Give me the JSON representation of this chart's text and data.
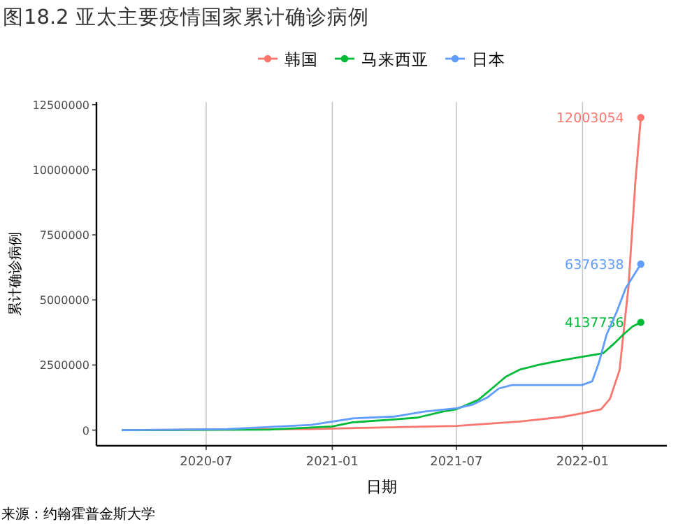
{
  "chart_data": {
    "type": "line",
    "title": "图18.2 亚太主要疫情国家累计确诊病例",
    "xlabel": "日期",
    "ylabel": "累计确诊病例",
    "annotations": [
      "来源：约翰霍普金斯大学"
    ],
    "legend": "top",
    "grid": "x",
    "line_style": "solid",
    "xlim": [
      "2020-01-23",
      "2022-05-04"
    ],
    "xticks": [
      {
        "value": "2020-07-01",
        "label": "2020-07"
      },
      {
        "value": "2021-01-01",
        "label": "2021-01"
      },
      {
        "value": "2021-07-01",
        "label": "2021-07"
      },
      {
        "value": "2022-01-01",
        "label": "2022-01"
      }
    ],
    "ylim": [
      -600000,
      12600000
    ],
    "yticks": [
      0,
      2500000,
      5000000,
      7500000,
      10000000,
      12500000
    ],
    "series": [
      {
        "name": "韩国",
        "color": "#f8766d",
        "x": [
          "2020-03-01",
          "2020-12-01",
          "2021-03-01",
          "2021-07-01",
          "2021-10-01",
          "2021-12-01",
          "2022-01-01",
          "2022-01-28",
          "2022-02-10",
          "2022-02-24",
          "2022-03-09",
          "2022-03-19",
          "2022-03-27"
        ],
        "values": [
          0,
          40000,
          95000,
          160000,
          330000,
          500000,
          650000,
          800000,
          1200000,
          2300000,
          5500000,
          9500000,
          12003054
        ],
        "value_labels": [
          null,
          null,
          null,
          null,
          null,
          null,
          null,
          null,
          null,
          null,
          null,
          null,
          "12003054"
        ]
      },
      {
        "name": "马来西亚",
        "color": "#00ba38",
        "x": [
          "2020-03-01",
          "2020-10-01",
          "2021-01-01",
          "2021-01-31",
          "2021-04-01",
          "2021-05-05",
          "2021-06-11",
          "2021-07-01",
          "2021-08-02",
          "2021-08-22",
          "2021-09-11",
          "2021-10-01",
          "2021-10-28",
          "2021-11-24",
          "2021-12-21",
          "2022-01-31",
          "2022-02-15",
          "2022-03-01",
          "2022-03-15",
          "2022-03-27"
        ],
        "values": [
          0,
          20000,
          140000,
          300000,
          410000,
          480000,
          710000,
          800000,
          1160000,
          1600000,
          2050000,
          2320000,
          2500000,
          2640000,
          2770000,
          2950000,
          3300000,
          3660000,
          3980000,
          4137736
        ],
        "value_labels": [
          null,
          null,
          null,
          null,
          null,
          null,
          null,
          null,
          null,
          null,
          null,
          null,
          null,
          null,
          null,
          null,
          null,
          null,
          null,
          "4137736"
        ]
      },
      {
        "name": "日本",
        "color": "#619cff",
        "x": [
          "2020-03-01",
          "2020-08-01",
          "2020-12-01",
          "2021-01-31",
          "2021-04-01",
          "2021-05-15",
          "2021-07-01",
          "2021-07-25",
          "2021-08-15",
          "2021-09-01",
          "2021-09-20",
          "2021-12-31",
          "2022-01-15",
          "2022-01-25",
          "2022-02-05",
          "2022-02-20",
          "2022-03-05",
          "2022-03-27"
        ],
        "values": [
          0,
          40000,
          200000,
          450000,
          520000,
          710000,
          840000,
          980000,
          1250000,
          1600000,
          1730000,
          1730000,
          1870000,
          2600000,
          3660000,
          4550000,
          5450000,
          6376338
        ],
        "value_labels": [
          null,
          null,
          null,
          null,
          null,
          null,
          null,
          null,
          null,
          null,
          null,
          null,
          null,
          null,
          null,
          null,
          null,
          "6376338"
        ]
      }
    ]
  }
}
